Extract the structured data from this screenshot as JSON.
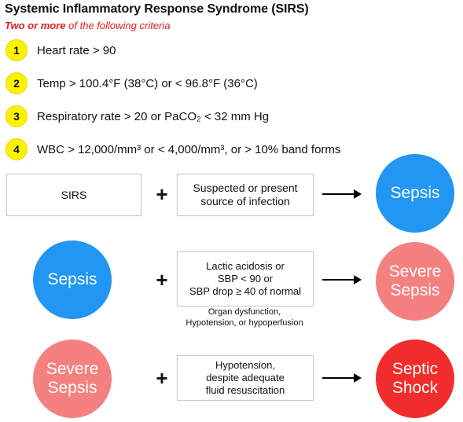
{
  "title": "Systemic Inflammatory Response Syndrome (SIRS)",
  "subtitle": {
    "emphasis": "Two or more",
    "rest": " of the following criteria"
  },
  "criteria": [
    {
      "number": "1",
      "text": "Heart rate > 90"
    },
    {
      "number": "2",
      "text": "Temp > 100.4°F (38°C) or < 96.8°F (36°C)"
    },
    {
      "number": "3",
      "text": "Respiratory rate > 20 or PaCO₂ < 32 mm Hg"
    },
    {
      "number": "4",
      "text": "WBC > 12,000/mm³ or < 4,000/mm³, or > 10% band forms"
    }
  ],
  "rows": [
    {
      "left": "SIRS",
      "plus": "+",
      "middle": [
        "Suspected or present",
        "source of infection"
      ],
      "result": "Sepsis"
    },
    {
      "left": "Sepsis",
      "plus": "+",
      "middle": [
        "Lactic acidosis or",
        "SBP < 90 or",
        "SBP drop ≥ 40 of normal"
      ],
      "note": [
        "Organ dysfunction,",
        "Hypotension, or hypoperfusion"
      ],
      "result": [
        "Severe",
        "Sepsis"
      ]
    },
    {
      "left": [
        "Severe",
        "Sepsis"
      ],
      "plus": "+",
      "middle": [
        "Hypotension,",
        "despite adequate",
        "fluid resuscitation"
      ],
      "result": [
        "Septic",
        "Shock"
      ]
    }
  ],
  "colors": {
    "number_badge": "#fff200",
    "subtitle": "#e02020",
    "sepsis": "#2196f3",
    "severe_sepsis": "#f58080",
    "septic_shock": "#f12c2c"
  }
}
